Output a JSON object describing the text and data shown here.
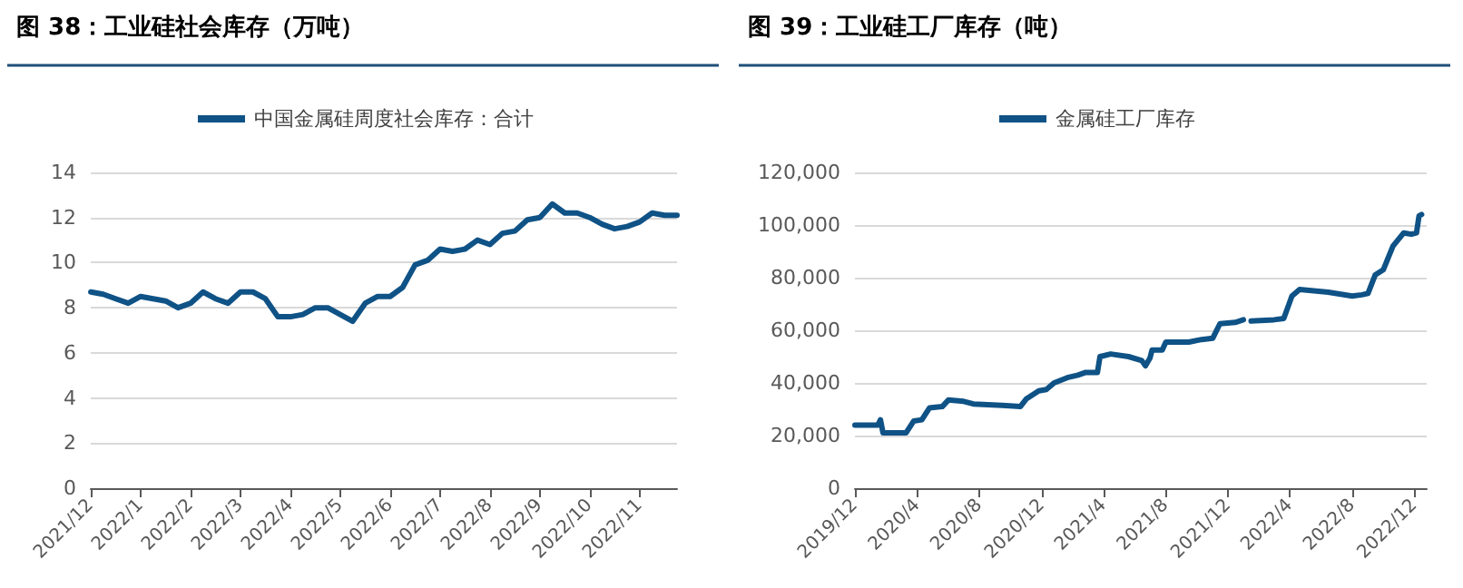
{
  "chart_data": [
    {
      "type": "line",
      "title": "图 38：工业硅社会库存（万吨）",
      "categories": [
        "2021/12",
        null,
        null,
        null,
        "2022/1",
        null,
        null,
        null,
        "2022/2",
        null,
        null,
        null,
        "2022/3",
        null,
        null,
        null,
        "2022/4",
        null,
        null,
        null,
        "2022/5",
        null,
        null,
        null,
        "2022/6",
        null,
        null,
        null,
        "2022/7",
        null,
        null,
        null,
        "2022/8",
        null,
        null,
        null,
        "2022/9",
        null,
        null,
        null,
        "2022/10",
        null,
        null,
        null,
        "2022/11",
        null,
        null,
        null
      ],
      "series": [
        {
          "name": "中国金属硅周度社会库存：合计",
          "color": "#0f5286",
          "values": [
            8.7,
            8.6,
            8.4,
            8.2,
            8.5,
            8.4,
            8.3,
            8.0,
            8.2,
            8.7,
            8.4,
            8.2,
            8.7,
            8.7,
            8.4,
            7.6,
            7.6,
            7.7,
            8.0,
            8.0,
            7.7,
            7.4,
            8.2,
            8.5,
            8.5,
            8.9,
            9.9,
            10.1,
            10.6,
            10.5,
            10.6,
            11.0,
            10.8,
            11.3,
            11.4,
            11.9,
            12.0,
            12.6,
            12.2,
            12.2,
            12.0,
            11.7,
            11.5,
            11.6,
            11.8,
            12.2,
            12.1,
            12.1
          ]
        }
      ],
      "ylim": [
        0,
        14
      ],
      "yticks": [
        0,
        2,
        4,
        6,
        8,
        10,
        12,
        14
      ],
      "grid": "y",
      "legend": "top",
      "marker": "none"
    },
    {
      "type": "line",
      "title": "图 39：工业硅工厂库存（吨）",
      "x": [
        "2019-12-01",
        "2020-01-15",
        "2020-01-20",
        "2020-01-25",
        "2020-03-10",
        "2020-03-25",
        "2020-04-10",
        "2020-04-25",
        "2020-05-20",
        "2020-06-01",
        "2020-07-01",
        "2020-07-20",
        "2020-09-15",
        "2020-10-20",
        "2020-11-01",
        "2020-11-25",
        "2020-12-10",
        "2020-12-25",
        "2021-01-20",
        "2021-02-10",
        "2021-02-25",
        "2021-03-20",
        "2021-03-25",
        "2021-04-15",
        "2021-05-20",
        "2021-06-15",
        "2021-06-22",
        "2021-07-01",
        "2021-07-05",
        "2021-07-25",
        "2021-08-01",
        "2021-09-15",
        "2021-10-10",
        "2021-11-01",
        "2021-11-15",
        "2021-12-15",
        "2021-12-31",
        "2022-01-05",
        "2022-01-15",
        "2022-03-01",
        "2022-03-20",
        "2022-04-05",
        "2022-04-20",
        "2022-06-15",
        "2022-08-01",
        "2022-08-20",
        "2022-09-01",
        "2022-09-15",
        "2022-10-01",
        "2022-10-20",
        "2022-11-10",
        "2022-11-25",
        "2022-12-05",
        "2022-12-10",
        "2022-12-15"
      ],
      "series": [
        {
          "name": "金属硅工厂库存",
          "color": "#0f5286",
          "values": [
            24000,
            24000,
            26000,
            21000,
            21000,
            25500,
            26000,
            30500,
            31000,
            33500,
            33000,
            32000,
            31500,
            31000,
            34000,
            37000,
            37500,
            40000,
            42000,
            43000,
            44000,
            44000,
            50000,
            51000,
            50000,
            48500,
            46500,
            49500,
            52500,
            52500,
            55500,
            55500,
            56500,
            57000,
            62500,
            63000,
            64000,
            null,
            63500,
            64000,
            64500,
            73000,
            75500,
            74500,
            73000,
            73500,
            74000,
            81000,
            83000,
            92000,
            97000,
            96500,
            97000,
            103500,
            104000
          ]
        }
      ],
      "xlim": [
        "2019-12-01",
        "2022-12-25"
      ],
      "xticks": [
        {
          "value": "2019-12-01",
          "label": "2019/12"
        },
        {
          "value": "2020-04-01",
          "label": "2020/4"
        },
        {
          "value": "2020-08-01",
          "label": "2020/8"
        },
        {
          "value": "2020-12-01",
          "label": "2020/12"
        },
        {
          "value": "2021-04-01",
          "label": "2021/4"
        },
        {
          "value": "2021-08-01",
          "label": "2021/8"
        },
        {
          "value": "2021-12-01",
          "label": "2021/12"
        },
        {
          "value": "2022-04-01",
          "label": "2022/4"
        },
        {
          "value": "2022-08-01",
          "label": "2022/8"
        },
        {
          "value": "2022-12-01",
          "label": "2022/12"
        }
      ],
      "ylim": [
        0,
        120000
      ],
      "yticks": [
        0,
        {
          "value": 20000,
          "label": "20,000"
        },
        {
          "value": 40000,
          "label": "40,000"
        },
        {
          "value": 60000,
          "label": "60,000"
        },
        {
          "value": 80000,
          "label": "80,000"
        },
        {
          "value": 100000,
          "label": "100,000"
        },
        {
          "value": 120000,
          "label": "120,000"
        }
      ],
      "grid": "y",
      "legend": "top",
      "marker": "none"
    }
  ]
}
